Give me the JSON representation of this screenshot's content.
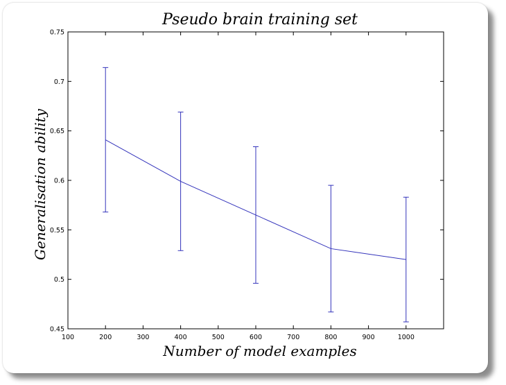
{
  "chart_data": {
    "type": "line",
    "title": "Pseudo brain training set",
    "xlabel": "Number of model examples",
    "ylabel": "Generalisation ability",
    "xlim": [
      100,
      1100
    ],
    "ylim": [
      0.45,
      0.75
    ],
    "xticks": [
      100,
      200,
      300,
      400,
      500,
      600,
      700,
      800,
      900,
      1000
    ],
    "yticks": [
      0.45,
      0.5,
      0.55,
      0.6,
      0.65,
      0.7,
      0.75
    ],
    "xtick_labels": [
      "100",
      "200",
      "300",
      "400",
      "500",
      "600",
      "700",
      "800",
      "900",
      "1000"
    ],
    "ytick_labels": [
      "0.45",
      "0.5",
      "0.55",
      "0.6",
      "0.65",
      "0.7",
      "0.75"
    ],
    "grid": false,
    "series": [
      {
        "x": [
          200,
          400,
          600,
          800,
          1000
        ],
        "y": [
          0.641,
          0.599,
          0.565,
          0.531,
          0.52
        ],
        "err_low": [
          0.568,
          0.529,
          0.496,
          0.467,
          0.457
        ],
        "err_high": [
          0.714,
          0.669,
          0.634,
          0.595,
          0.583
        ],
        "color": "#3333bb"
      }
    ]
  }
}
